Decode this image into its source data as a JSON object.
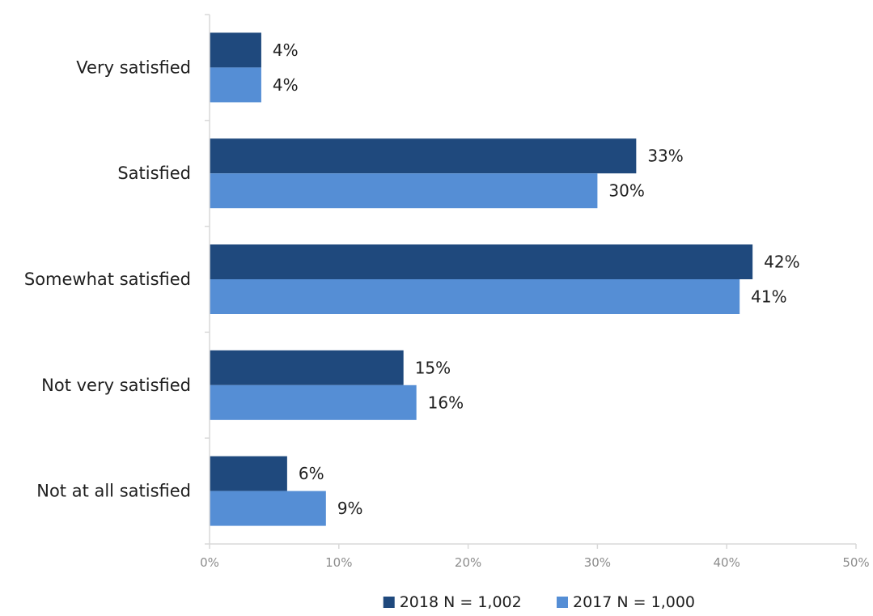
{
  "chart_data": {
    "type": "bar",
    "orientation": "horizontal",
    "categories": [
      "Very satisfied",
      "Satisfied",
      "Somewhat satisfied",
      "Not very satisfied",
      "Not at all satisfied"
    ],
    "series": [
      {
        "name": "2018 N = 1,002",
        "color": "#1f497d",
        "values": [
          4,
          33,
          42,
          15,
          6
        ],
        "labels": [
          "4%",
          "33%",
          "42%",
          "15%",
          "6%"
        ]
      },
      {
        "name": "2017 N = 1,000",
        "color": "#558ed5",
        "values": [
          4,
          30,
          41,
          16,
          9
        ],
        "labels": [
          "4%",
          "30%",
          "41%",
          "16%",
          "9%"
        ]
      }
    ],
    "xlim": [
      0,
      50
    ],
    "xticks": [
      0,
      10,
      20,
      30,
      40,
      50
    ],
    "xtick_labels": [
      "0%",
      "10%",
      "20%",
      "30%",
      "40%",
      "50%"
    ],
    "grid": false,
    "legend_position": "bottom"
  }
}
